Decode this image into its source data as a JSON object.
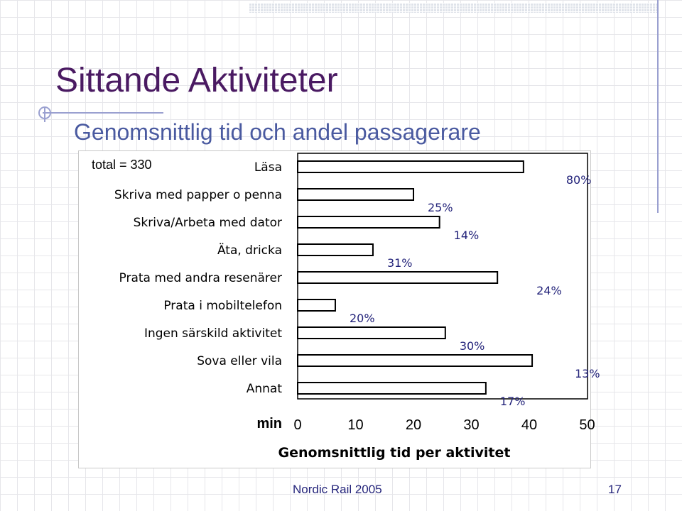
{
  "slide": {
    "title": "Sittande Aktiviteter",
    "subtitle": "Genomsnittlig tid och andel passagerare",
    "footer": "Nordic Rail 2005",
    "page_number": "17"
  },
  "chart_data": {
    "type": "bar",
    "orientation": "horizontal",
    "note": "total = 330",
    "categories": [
      "Läsa",
      "Skriva med papper o penna",
      "Skriva/Arbeta med dator",
      "Äta, dricka",
      "Prata med andra resenärer",
      "Prata i mobiltelefon",
      "Ingen särskild aktivitet",
      "Sova eller vila",
      "Annat"
    ],
    "values": [
      39,
      20,
      24.5,
      13,
      34.5,
      6.5,
      25.5,
      40.5,
      32.5
    ],
    "share_labels": [
      "80%",
      "25%",
      "14%",
      "31%",
      "24%",
      "20%",
      "30%",
      "13%",
      "17%"
    ],
    "xlabel": "Genomsnittlig tid per aktivitet",
    "xunit": "min",
    "xlim": [
      0,
      50
    ],
    "xticks": [
      "0",
      "10",
      "20",
      "30",
      "40",
      "50"
    ],
    "bar_color": "#ffffff",
    "bar_edge": "#000000",
    "label_color": "#23237a"
  }
}
